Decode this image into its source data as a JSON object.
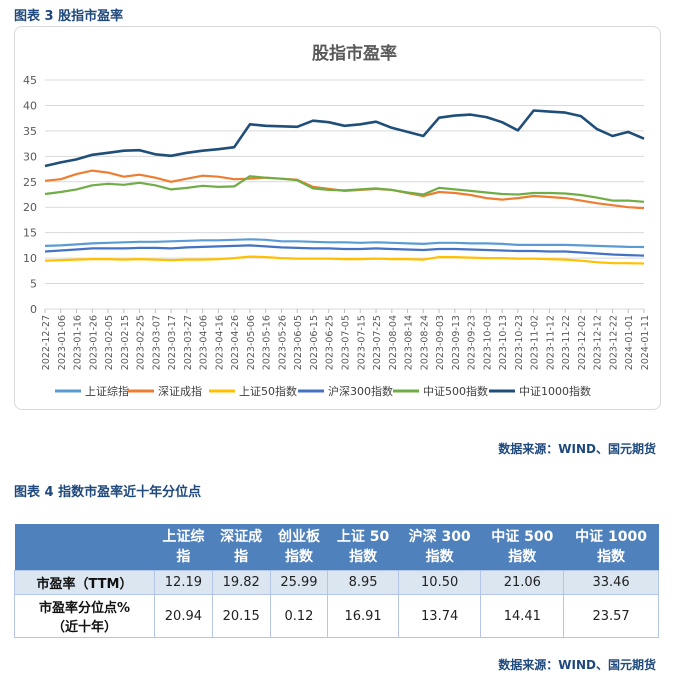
{
  "figure3": {
    "caption": "图表  3  股指市盈率",
    "source": "数据来源：WIND、国元期货"
  },
  "figure4": {
    "caption": "图表 4  指数市盈率近十年分位点",
    "source": "数据来源：WIND、国元期货"
  },
  "chart_data": {
    "type": "line",
    "title": "股指市盈率",
    "ylim": [
      0,
      45
    ],
    "yticks": [
      0,
      5,
      10,
      15,
      20,
      25,
      30,
      35,
      40,
      45
    ],
    "grid": true,
    "legend_position": "bottom",
    "x": [
      "2022-12-27",
      "2023-01-06",
      "2023-01-16",
      "2023-01-26",
      "2023-02-05",
      "2023-02-15",
      "2023-02-25",
      "2023-03-07",
      "2023-03-17",
      "2023-03-27",
      "2023-04-06",
      "2023-04-16",
      "2023-04-26",
      "2023-05-06",
      "2023-05-16",
      "2023-05-26",
      "2023-06-05",
      "2023-06-15",
      "2023-06-25",
      "2023-07-05",
      "2023-07-15",
      "2023-07-25",
      "2023-08-04",
      "2023-08-14",
      "2023-08-24",
      "2023-09-03",
      "2023-09-13",
      "2023-09-23",
      "2023-10-03",
      "2023-10-13",
      "2023-10-23",
      "2023-11-02",
      "2023-11-12",
      "2023-11-22",
      "2023-12-02",
      "2023-12-12",
      "2023-12-22",
      "2024-01-01",
      "2024-01-11"
    ],
    "xticks": [
      "2022-12-27",
      "2023-01-06",
      "2023-01-16",
      "2023-01-26",
      "2023-02-05",
      "2023-02-15",
      "2023-02-25",
      "2023-03-07",
      "2023-03-17",
      "2023-03-27",
      "2023-04-06",
      "2023-04-16",
      "2023-04-26",
      "2023-05-06",
      "2023-05-16",
      "2023-05-26",
      "2023-06-05",
      "2023-06-15",
      "2023-06-25",
      "2023-07-05",
      "2023-07-15",
      "2023-07-25",
      "2023-08-04",
      "2023-08-14",
      "2023-08-24",
      "2023-09-03",
      "2023-09-13",
      "2023-09-23",
      "2023-10-03",
      "2023-10-13",
      "2023-10-23",
      "2023-11-02",
      "2023-11-12",
      "2023-11-22",
      "2023-12-02",
      "2023-12-12",
      "2023-12-22",
      "2024-01-01",
      "2024-01-11"
    ],
    "series": [
      {
        "name": "上证综指",
        "color": "#5b9bd5",
        "values": [
          12.4,
          12.5,
          12.7,
          12.9,
          13.0,
          13.1,
          13.2,
          13.2,
          13.3,
          13.4,
          13.5,
          13.5,
          13.6,
          13.7,
          13.6,
          13.3,
          13.3,
          13.2,
          13.1,
          13.1,
          13.0,
          13.1,
          13.0,
          12.9,
          12.8,
          13.0,
          13.0,
          12.9,
          12.9,
          12.8,
          12.6,
          12.6,
          12.6,
          12.6,
          12.5,
          12.4,
          12.3,
          12.2,
          12.19
        ]
      },
      {
        "name": "深证成指",
        "color": "#ed7d31",
        "values": [
          25.2,
          25.5,
          26.5,
          27.2,
          26.8,
          26.0,
          26.4,
          25.8,
          25.0,
          25.6,
          26.2,
          26.0,
          25.5,
          25.6,
          25.8,
          25.6,
          25.4,
          24.0,
          23.6,
          23.2,
          23.4,
          23.6,
          23.4,
          22.8,
          22.2,
          23.0,
          22.8,
          22.4,
          21.8,
          21.5,
          21.8,
          22.2,
          22.0,
          21.8,
          21.3,
          20.8,
          20.4,
          20.0,
          19.82
        ]
      },
      {
        "name": "上证50指数",
        "color": "#ffc000",
        "values": [
          9.5,
          9.6,
          9.7,
          9.8,
          9.8,
          9.7,
          9.8,
          9.7,
          9.6,
          9.7,
          9.7,
          9.8,
          10.0,
          10.3,
          10.2,
          10.0,
          9.9,
          9.9,
          9.9,
          9.8,
          9.8,
          9.9,
          9.8,
          9.8,
          9.7,
          10.2,
          10.2,
          10.1,
          10.0,
          10.0,
          9.9,
          9.9,
          9.8,
          9.7,
          9.5,
          9.2,
          9.0,
          9.0,
          8.95
        ]
      },
      {
        "name": "沪深300指数",
        "color": "#4472c4",
        "values": [
          11.3,
          11.5,
          11.7,
          11.9,
          11.9,
          11.9,
          12.0,
          12.0,
          11.9,
          12.1,
          12.2,
          12.3,
          12.4,
          12.5,
          12.3,
          12.1,
          12.0,
          11.9,
          11.9,
          11.8,
          11.8,
          11.9,
          11.8,
          11.7,
          11.6,
          11.8,
          11.8,
          11.7,
          11.6,
          11.5,
          11.4,
          11.4,
          11.3,
          11.3,
          11.1,
          10.9,
          10.7,
          10.6,
          10.5
        ]
      },
      {
        "name": "中证500指数",
        "color": "#70ad47",
        "values": [
          22.6,
          23.0,
          23.5,
          24.3,
          24.6,
          24.4,
          24.8,
          24.3,
          23.5,
          23.8,
          24.2,
          24.0,
          24.1,
          26.1,
          25.8,
          25.6,
          25.3,
          23.7,
          23.4,
          23.3,
          23.5,
          23.7,
          23.4,
          22.9,
          22.5,
          23.8,
          23.5,
          23.2,
          22.9,
          22.6,
          22.5,
          22.8,
          22.8,
          22.7,
          22.4,
          21.9,
          21.3,
          21.3,
          21.06
        ]
      },
      {
        "name": "中证1000指数",
        "color": "#1f4e79",
        "values": [
          28.1,
          28.8,
          29.4,
          30.3,
          30.7,
          31.1,
          31.2,
          30.4,
          30.1,
          30.7,
          31.1,
          31.4,
          31.8,
          36.3,
          36.0,
          35.9,
          35.8,
          37.0,
          36.7,
          36.0,
          36.3,
          36.8,
          35.6,
          34.8,
          34.0,
          37.6,
          38.0,
          38.2,
          37.7,
          36.7,
          35.1,
          39.0,
          38.8,
          38.6,
          37.9,
          35.4,
          34.0,
          34.8,
          33.46
        ]
      }
    ]
  },
  "table": {
    "headers": [
      {
        "line1": "",
        "line2": ""
      },
      {
        "line1": "上证综",
        "line2": "指"
      },
      {
        "line1": "深证成",
        "line2": "指"
      },
      {
        "line1": "创业板",
        "line2": "指数"
      },
      {
        "line1": "上证 50",
        "line2": "指数"
      },
      {
        "line1": "沪深 300",
        "line2": "指数"
      },
      {
        "line1": "中证 500",
        "line2": "指数"
      },
      {
        "line1": "中证 1000",
        "line2": "指数"
      }
    ],
    "rows": [
      {
        "label": "市盈率（TTM）",
        "label2": "",
        "values": [
          "12.19",
          "19.82",
          "25.99",
          "8.95",
          "10.50",
          "21.06",
          "33.46"
        ]
      },
      {
        "label": "市盈率分位点%",
        "label2": "（近十年）",
        "values": [
          "20.94",
          "20.15",
          "0.12",
          "16.91",
          "13.74",
          "14.41",
          "23.57"
        ]
      }
    ]
  }
}
